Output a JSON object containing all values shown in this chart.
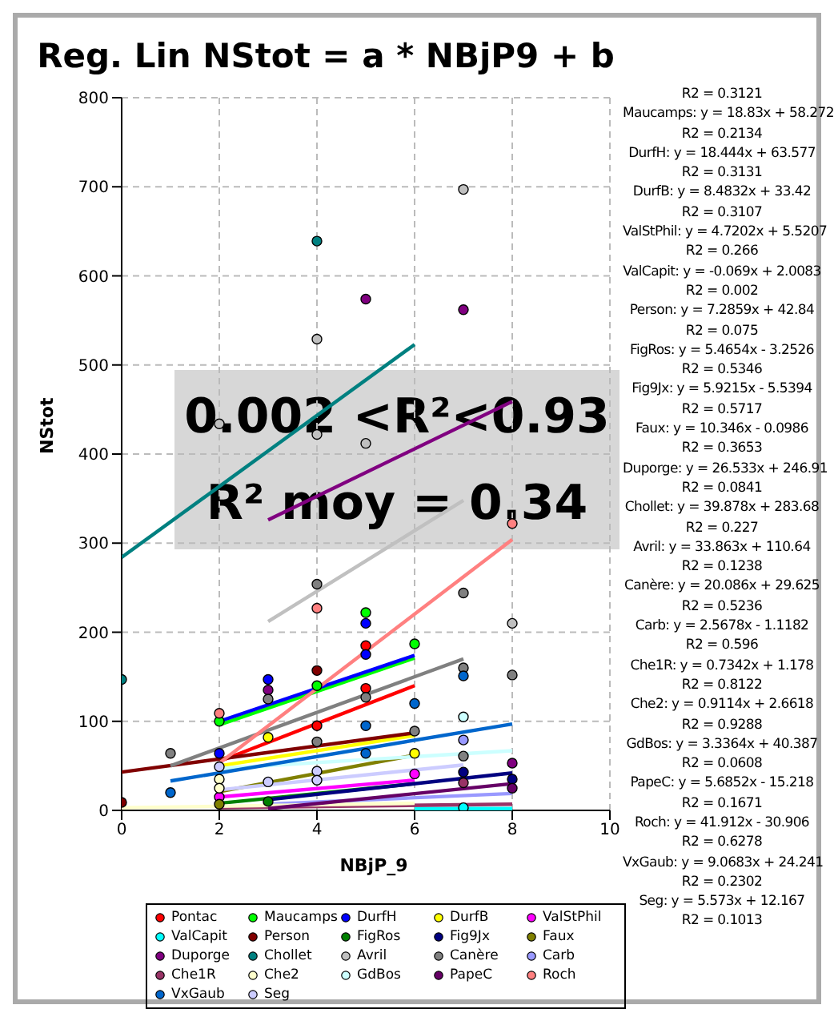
{
  "chart_data": {
    "type": "scatter",
    "title": "Reg. Lin NStot = a * NBjP9 + b",
    "xlabel": "NBjP_9",
    "ylabel": "NStot",
    "xlim": [
      0,
      10
    ],
    "xticks": [
      0,
      2,
      4,
      6,
      8,
      10
    ],
    "ylim": [
      0,
      800
    ],
    "yticks": [
      0,
      100,
      200,
      300,
      400,
      500,
      600,
      700,
      800
    ],
    "grid": true,
    "legend": "bottom",
    "marker": "circle",
    "annotations": [
      "0.002 <R²<0.93",
      "R² moy = 0.34",
      "R2 = 0.3121",
      "Maucamps: y = 18.83x + 58.272",
      "R2 = 0.2134",
      "DurfH: y = 18.444x + 63.577",
      "R2 = 0.3131",
      "DurfB: y = 8.4832x + 33.42",
      "R2 = 0.3107",
      "ValStPhil: y = 4.7202x + 5.5207",
      "R2 = 0.266",
      "ValCapit: y = -0.069x + 2.0083",
      "R2 = 0.002",
      "Person: y = 7.2859x + 42.84",
      "R2 = 0.075",
      "FigRos: y = 5.4654x - 3.2526",
      "R2 = 0.5346",
      "Fig9Jx: y = 5.9215x - 5.5394",
      "R2 = 0.5717",
      "Faux: y = 10.346x - 0.0986",
      "R2 = 0.3653",
      "Duporge: y = 26.533x + 246.91",
      "R2 = 0.0841",
      "Chollet: y = 39.878x + 283.68",
      "R2 = 0.227",
      "Avril: y = 33.863x + 110.64",
      "R2 = 0.1238",
      "Canère: y = 20.086x + 29.625",
      "R2 = 0.5236",
      "Carb: y = 2.5678x - 1.1182",
      "R2 = 0.596",
      "Che1R: y = 0.7342x + 1.178",
      "R2 = 0.8122",
      "Che2: y = 0.9114x + 2.6618",
      "R2 = 0.9288",
      "GdBos: y = 3.3364x + 40.387",
      "R2 = 0.0608",
      "PapeC: y = 5.6852x - 15.218",
      "R2 = 0.1671",
      "Roch: y = 41.912x - 30.906",
      "R2 = 0.6278",
      "VxGaub: y = 9.0683x + 24.241",
      "R2 = 0.2302",
      "Seg: y = 5.573x + 12.167",
      "R2 = 0.1013"
    ],
    "series": [
      {
        "type": "line",
        "marker": "none",
        "color": "#ff0000",
        "x": [
          2,
          6
        ],
        "values": [
          55,
          140
        ]
      },
      {
        "type": "line",
        "marker": "none",
        "color": "#00ff00",
        "x": [
          2,
          6
        ],
        "values": [
          96,
          171
        ]
      },
      {
        "type": "line",
        "marker": "none",
        "color": "#0000ff",
        "x": [
          2,
          6
        ],
        "values": [
          100,
          174
        ]
      },
      {
        "type": "line",
        "marker": "none",
        "color": "#ffff00",
        "x": [
          2,
          6
        ],
        "values": [
          50,
          84
        ]
      },
      {
        "type": "line",
        "marker": "none",
        "color": "#ff00ff",
        "x": [
          2,
          6
        ],
        "values": [
          15,
          34
        ]
      },
      {
        "type": "line",
        "marker": "none",
        "color": "#00ffff",
        "x": [
          6,
          8
        ],
        "values": [
          2,
          2
        ]
      },
      {
        "type": "line",
        "marker": "none",
        "color": "#800000",
        "x": [
          0,
          6
        ],
        "values": [
          43,
          87
        ]
      },
      {
        "type": "line",
        "marker": "none",
        "color": "#008000",
        "x": [
          2,
          6
        ],
        "values": [
          8,
          30
        ]
      },
      {
        "type": "line",
        "marker": "none",
        "color": "#000080",
        "x": [
          3,
          8
        ],
        "values": [
          12,
          42
        ]
      },
      {
        "type": "line",
        "marker": "none",
        "color": "#808000",
        "x": [
          2,
          6
        ],
        "values": [
          21,
          62
        ]
      },
      {
        "type": "line",
        "marker": "none",
        "color": "#800080",
        "x": [
          3,
          8
        ],
        "values": [
          326,
          459
        ]
      },
      {
        "type": "line",
        "marker": "none",
        "color": "#008080",
        "x": [
          0,
          6
        ],
        "values": [
          284,
          523
        ]
      },
      {
        "type": "line",
        "marker": "none",
        "color": "#c0c0c0",
        "x": [
          3,
          7
        ],
        "values": [
          212,
          348
        ]
      },
      {
        "type": "line",
        "marker": "none",
        "color": "#808080",
        "x": [
          1,
          7
        ],
        "values": [
          50,
          170
        ]
      },
      {
        "type": "line",
        "marker": "none",
        "color": "#9999ff",
        "x": [
          3,
          8
        ],
        "values": [
          7,
          19
        ]
      },
      {
        "type": "line",
        "marker": "none",
        "color": "#993366",
        "x": [
          2,
          8
        ],
        "values": [
          3,
          7
        ]
      },
      {
        "type": "line",
        "marker": "none",
        "color": "#ffffcc",
        "x": [
          0,
          6
        ],
        "values": [
          3,
          8
        ]
      },
      {
        "type": "line",
        "marker": "none",
        "color": "#ccffff",
        "x": [
          2,
          8
        ],
        "values": [
          47,
          67
        ]
      },
      {
        "type": "line",
        "marker": "none",
        "color": "#660066",
        "x": [
          3,
          8
        ],
        "values": [
          2,
          30
        ]
      },
      {
        "type": "line",
        "marker": "none",
        "color": "#ff8080",
        "x": [
          2,
          8
        ],
        "values": [
          53,
          304
        ]
      },
      {
        "type": "line",
        "marker": "none",
        "color": "#0066cc",
        "x": [
          1,
          8
        ],
        "values": [
          33,
          97
        ]
      },
      {
        "type": "line",
        "marker": "none",
        "color": "#ccccff",
        "x": [
          2,
          7
        ],
        "values": [
          23,
          51
        ]
      },
      {
        "name": "Pontac",
        "color": "#ff0000",
        "x": [
          5,
          5,
          4
        ],
        "values": [
          185,
          137,
          95
        ]
      },
      {
        "name": "Maucamps",
        "color": "#00ff00",
        "x": [
          2,
          4,
          5,
          6
        ],
        "values": [
          100,
          140,
          222,
          187
        ]
      },
      {
        "name": "DurfH",
        "color": "#0000ff",
        "x": [
          3,
          5,
          5,
          2
        ],
        "values": [
          147,
          210,
          175,
          64
        ]
      },
      {
        "name": "DurfB",
        "color": "#ffff00",
        "x": [
          3,
          6
        ],
        "values": [
          82,
          64
        ]
      },
      {
        "name": "ValStPhil",
        "color": "#ff00ff",
        "x": [
          6,
          2
        ],
        "values": [
          41,
          15
        ]
      },
      {
        "name": "ValCapit",
        "color": "#00ffff",
        "x": [
          7
        ],
        "values": [
          3
        ]
      },
      {
        "name": "Person",
        "color": "#800000",
        "x": [
          0,
          4
        ],
        "values": [
          9,
          157
        ]
      },
      {
        "name": "FigRos",
        "color": "#008000",
        "x": [
          3
        ],
        "values": [
          10
        ]
      },
      {
        "name": "Fig9Jx",
        "color": "#000080",
        "x": [
          7,
          8
        ],
        "values": [
          43,
          35
        ]
      },
      {
        "name": "Faux",
        "color": "#808000",
        "x": [
          2
        ],
        "values": [
          7
        ]
      },
      {
        "name": "Duporge",
        "color": "#800080",
        "x": [
          5,
          7,
          3,
          8
        ],
        "values": [
          574,
          562,
          135,
          53
        ]
      },
      {
        "name": "Chollet",
        "color": "#008080",
        "x": [
          4,
          0
        ],
        "values": [
          639,
          147
        ]
      },
      {
        "name": "Avril",
        "color": "#c0c0c0",
        "x": [
          7,
          4,
          2,
          4,
          5,
          8
        ],
        "values": [
          697,
          529,
          434,
          422,
          412,
          210
        ]
      },
      {
        "name": "Canère",
        "color": "#808080",
        "x": [
          1,
          3,
          4,
          4,
          5,
          6,
          7,
          7,
          7,
          8
        ],
        "values": [
          64,
          125,
          254,
          77,
          127,
          89,
          244,
          160,
          61,
          152
        ]
      },
      {
        "name": "Carb",
        "color": "#9999ff",
        "x": [
          7
        ],
        "values": [
          79
        ]
      },
      {
        "name": "Che1R",
        "color": "#993366",
        "x": [
          7
        ],
        "values": [
          31
        ]
      },
      {
        "name": "Che2",
        "color": "#ffffcc",
        "x": [
          2,
          2
        ],
        "values": [
          35,
          25
        ]
      },
      {
        "name": "GdBos",
        "color": "#ccffff",
        "x": [
          7
        ],
        "values": [
          105
        ]
      },
      {
        "name": "PapeC",
        "color": "#660066",
        "x": [
          8
        ],
        "values": [
          25
        ]
      },
      {
        "name": "Roch",
        "color": "#ff8080",
        "x": [
          2,
          4,
          8
        ],
        "values": [
          109,
          227,
          322
        ]
      },
      {
        "name": "VxGaub",
        "color": "#0066cc",
        "x": [
          1,
          5,
          5,
          6,
          7
        ],
        "values": [
          20,
          95,
          64,
          120,
          151
        ]
      },
      {
        "name": "Seg",
        "color": "#ccccff",
        "x": [
          2,
          3,
          4,
          4
        ],
        "values": [
          49,
          32,
          44,
          34
        ]
      }
    ]
  }
}
